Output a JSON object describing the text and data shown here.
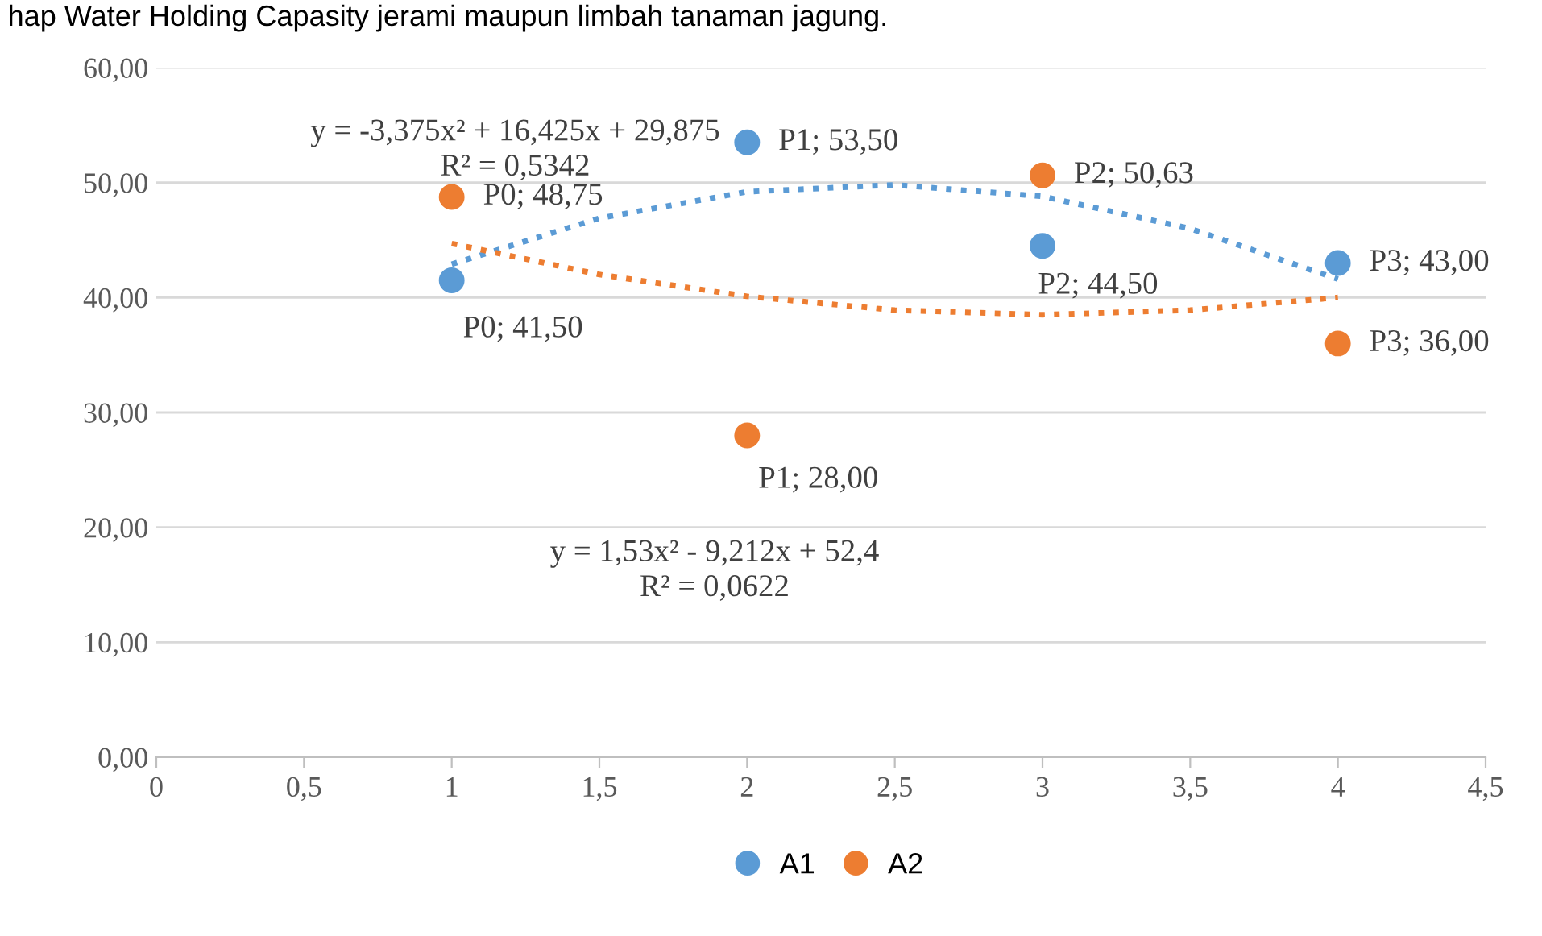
{
  "chart_data": {
    "type": "scatter",
    "xlim": [
      0,
      4.5
    ],
    "xticks": [
      0,
      {
        "value": 0.5,
        "label": "0,5"
      },
      1,
      {
        "value": 1.5,
        "label": "1,5"
      },
      2,
      {
        "value": 2.5,
        "label": "2,5"
      },
      3,
      {
        "value": 3.5,
        "label": "3,5"
      },
      4,
      {
        "value": 4.5,
        "label": "4,5"
      }
    ],
    "ylim": [
      0,
      60
    ],
    "yticks": [
      {
        "value": 0,
        "label": "0,00"
      },
      {
        "value": 10,
        "label": "10,00"
      },
      {
        "value": 20,
        "label": "20,00"
      },
      {
        "value": 30,
        "label": "30,00"
      },
      {
        "value": 40,
        "label": "40,00"
      },
      {
        "value": 50,
        "label": "50,00"
      },
      {
        "value": 60,
        "label": "60,00"
      }
    ],
    "grid": "y",
    "legend": "bottom",
    "marker": "circle",
    "series": [
      {
        "name": "A1",
        "color": "#5b9bd5",
        "x": [
          1,
          2,
          3,
          4
        ],
        "values": [
          41.5,
          53.5,
          44.5,
          43.0
        ],
        "value_labels": [
          "P0; 41,50",
          "P1; 53,50",
          "P2; 44,50",
          "P3; 43,00"
        ]
      },
      {
        "name": "A2",
        "color": "#ed7d31",
        "x": [
          1,
          2,
          3,
          4
        ],
        "values": [
          48.75,
          28.0,
          50.63,
          36.0
        ],
        "value_labels": [
          "P0; 48,75",
          "P1; 28,00",
          "P2; 50,63",
          "P3; 36,00"
        ]
      },
      {
        "type": "line",
        "marker": "none",
        "line_style": "dotted",
        "color": "#5b9bd5",
        "x": [
          1,
          1.5,
          2,
          2.5,
          3,
          3.5,
          4
        ],
        "values": [
          42.9,
          46.9,
          49.2,
          49.8,
          48.8,
          46.0,
          41.6
        ]
      },
      {
        "type": "line",
        "marker": "none",
        "line_style": "dotted",
        "color": "#ed7d31",
        "x": [
          1,
          1.5,
          2,
          2.5,
          3,
          3.5,
          4
        ],
        "values": [
          44.7,
          42.0,
          40.1,
          38.9,
          38.5,
          38.9,
          40.0
        ]
      }
    ],
    "annotations": [
      "y = -3,375x² + 16,425x + 29,875\nR² = 0,5342",
      "y = 1,53x² - 9,212x + 52,4\nR² = 0,0622",
      "hap Water Holding Capasity jerami maupun limbah tanaman jagung."
    ]
  }
}
